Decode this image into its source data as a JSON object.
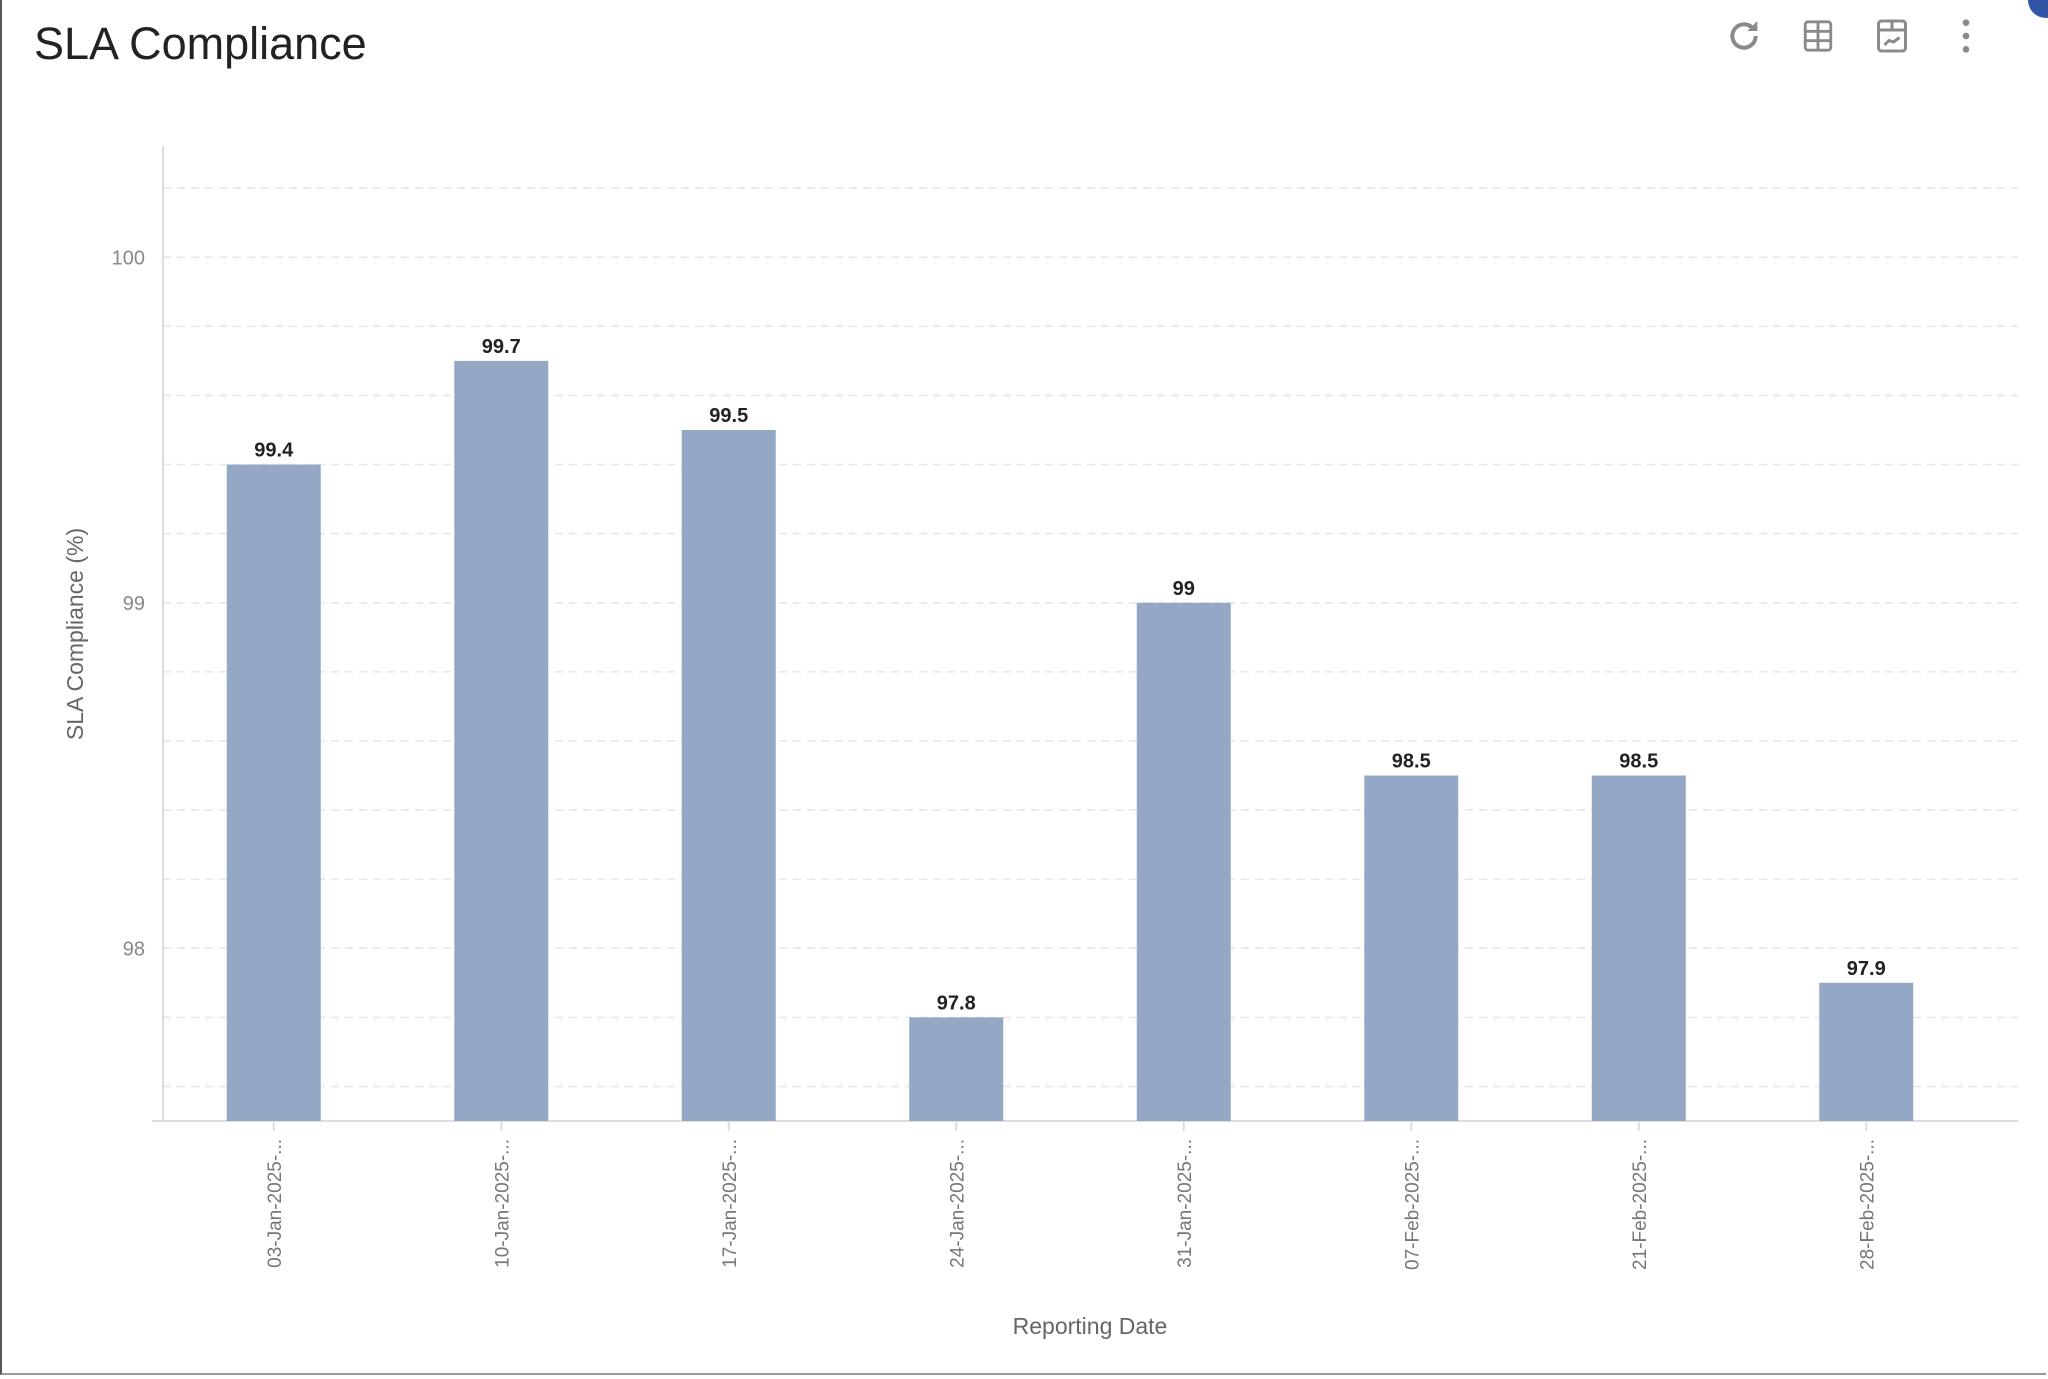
{
  "panel": {
    "title": "SLA Compliance",
    "toolbar": [
      {
        "icon": "refresh-icon",
        "label": "Refresh"
      },
      {
        "icon": "table-icon",
        "label": "Table view"
      },
      {
        "icon": "chart-view-icon",
        "label": "Chart view"
      },
      {
        "icon": "more-vertical-icon",
        "label": "More options"
      }
    ]
  },
  "chart_data": {
    "type": "bar",
    "title": "",
    "xlabel": "Reporting Date",
    "ylabel": "SLA Compliance (%)",
    "categories": [
      "03-Jan-2025-...",
      "10-Jan-2025-...",
      "17-Jan-2025-...",
      "24-Jan-2025-...",
      "31-Jan-2025-...",
      "07-Feb-2025-...",
      "21-Feb-2025-...",
      "28-Feb-2025-..."
    ],
    "values": [
      99.4,
      99.7,
      99.5,
      97.8,
      99,
      98.5,
      98.5,
      97.9
    ],
    "data_labels": [
      "99.4",
      "99.7",
      "99.5",
      "97.8",
      "99",
      "98.5",
      "98.5",
      "97.9"
    ],
    "yticks": [
      98,
      99,
      100
    ],
    "ylim": [
      97.5,
      100.33
    ],
    "grid": true,
    "bar_color": "#94a8c6"
  }
}
